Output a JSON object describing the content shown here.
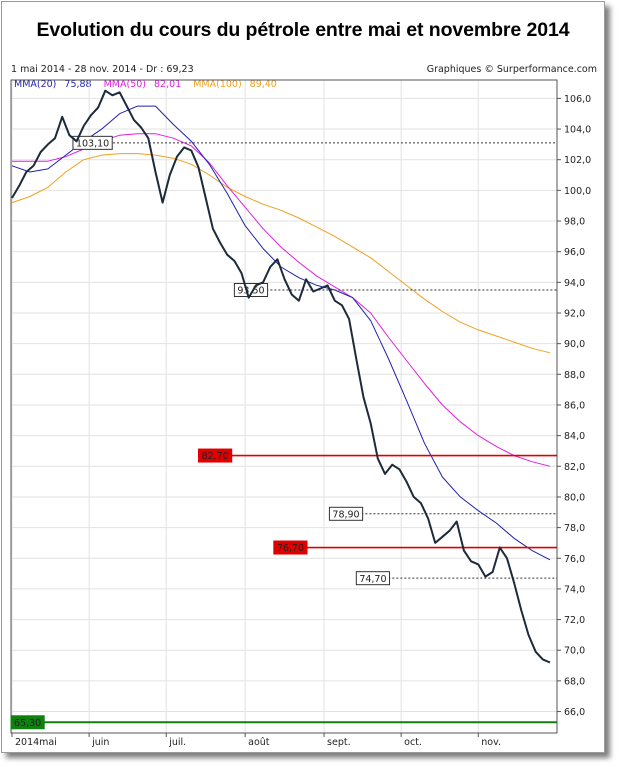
{
  "header": {
    "title": "Evolution du cours du pétrole entre mai et novembre 2014",
    "period": "1 mai 2014 - 28 nov. 2014 - Dr : 69,23",
    "credit": "Graphiques © Surperformance.com"
  },
  "legend": [
    {
      "label": "MMA(20)",
      "value": "75,88",
      "color": "#1f1fb0"
    },
    {
      "label": "MMA(50)",
      "value": "82,01",
      "color": "#e020e0"
    },
    {
      "label": "MMA(100)",
      "value": "89,40",
      "color": "#f0a020"
    }
  ],
  "colors": {
    "price": "#1c2a3a",
    "mma20": "#2020b0",
    "mma50": "#e020e0",
    "mma100": "#f0a020",
    "resistance": "#e00000",
    "support": "#108010"
  },
  "chart_data": {
    "type": "line",
    "title": "Evolution du cours du pétrole entre mai et novembre 2014",
    "xlabel": "",
    "ylabel": "",
    "x_range": [
      0,
      30
    ],
    "ylim": [
      64.6,
      107.2
    ],
    "y_ticks": [
      "66,0",
      "68,0",
      "70,0",
      "72,0",
      "74,0",
      "76,0",
      "78,0",
      "80,0",
      "82,0",
      "84,0",
      "86,0",
      "88,0",
      "90,0",
      "92,0",
      "94,0",
      "96,0",
      "98,0",
      "100,0",
      "102,0",
      "104,0",
      "106,0"
    ],
    "y_tick_values": [
      66,
      68,
      70,
      72,
      74,
      76,
      78,
      80,
      82,
      84,
      86,
      88,
      90,
      92,
      94,
      96,
      98,
      100,
      102,
      104,
      106
    ],
    "x_ticks": [
      {
        "label": "2014mai",
        "x": 0
      },
      {
        "label": "juin",
        "x": 4.3
      },
      {
        "label": "juil.",
        "x": 8.6
      },
      {
        "label": "août",
        "x": 13.0
      },
      {
        "label": "sept.",
        "x": 17.4
      },
      {
        "label": "oct.",
        "x": 21.7
      },
      {
        "label": "nov.",
        "x": 26.0
      }
    ],
    "series": [
      {
        "name": "Cours",
        "x": [
          0,
          0.4,
          0.8,
          1.2,
          1.6,
          2.0,
          2.4,
          2.8,
          3.2,
          3.6,
          4.0,
          4.4,
          4.8,
          5.2,
          5.6,
          6.0,
          6.4,
          6.8,
          7.2,
          7.6,
          8.0,
          8.4,
          8.8,
          9.2,
          9.6,
          10.0,
          10.4,
          10.8,
          11.2,
          11.6,
          12.0,
          12.4,
          12.8,
          13.2,
          13.6,
          14.0,
          14.4,
          14.8,
          15.2,
          15.6,
          16.0,
          16.4,
          16.8,
          17.2,
          17.6,
          18.0,
          18.4,
          18.8,
          19.2,
          19.6,
          20.0,
          20.4,
          20.8,
          21.2,
          21.6,
          22.0,
          22.4,
          22.8,
          23.2,
          23.6,
          24.0,
          24.4,
          24.8,
          25.2,
          25.6,
          26.0,
          26.4,
          26.8,
          27.2,
          27.6,
          28.0,
          28.4,
          28.8,
          29.2,
          29.6,
          30.0
        ],
        "values": [
          99.5,
          100.3,
          101.2,
          101.6,
          102.5,
          103.0,
          103.4,
          104.8,
          103.6,
          103.2,
          104.2,
          104.9,
          105.4,
          106.5,
          106.2,
          106.4,
          105.5,
          104.6,
          104.1,
          103.4,
          101.2,
          99.2,
          101.0,
          102.2,
          102.8,
          102.6,
          101.5,
          99.5,
          97.5,
          96.6,
          95.8,
          95.4,
          94.6,
          93.0,
          93.8,
          94.0,
          95.0,
          95.5,
          94.2,
          93.2,
          92.8,
          94.2,
          93.4,
          93.6,
          93.8,
          92.8,
          92.5,
          91.6,
          89.0,
          86.5,
          84.8,
          82.5,
          81.5,
          82.1,
          81.8,
          81.0,
          80.0,
          79.6,
          78.6,
          77.0,
          77.4,
          77.8,
          78.4,
          76.5,
          75.8,
          75.6,
          74.8,
          75.1,
          76.7,
          76.0,
          74.4,
          72.6,
          71.0,
          69.9,
          69.4,
          69.2
        ]
      },
      {
        "name": "MMA(20)",
        "x": [
          0,
          1,
          2,
          3,
          4,
          5,
          6,
          7,
          8,
          9,
          10,
          11,
          12,
          13,
          14,
          15,
          16,
          17,
          18,
          19,
          20,
          21,
          22,
          23,
          24,
          25,
          26,
          27,
          28,
          29,
          30
        ],
        "values": [
          101.6,
          101.2,
          101.4,
          102.3,
          103.2,
          104.0,
          105.0,
          105.5,
          105.5,
          104.3,
          103.2,
          101.7,
          99.8,
          97.7,
          96.2,
          95.0,
          94.3,
          93.8,
          93.5,
          93.0,
          91.5,
          89.0,
          86.3,
          83.5,
          81.3,
          80.0,
          79.1,
          78.3,
          77.3,
          76.5,
          75.9
        ]
      },
      {
        "name": "MMA(50)",
        "x": [
          0,
          1,
          2,
          3,
          4,
          5,
          6,
          7,
          8,
          9,
          10,
          11,
          12,
          13,
          14,
          15,
          16,
          17,
          18,
          19,
          20,
          21,
          22,
          23,
          24,
          25,
          26,
          27,
          28,
          29,
          30
        ],
        "values": [
          101.9,
          101.9,
          101.9,
          102.2,
          102.7,
          103.2,
          103.6,
          103.7,
          103.7,
          103.4,
          102.9,
          101.8,
          100.3,
          98.9,
          97.5,
          96.3,
          95.3,
          94.4,
          93.7,
          93.0,
          92.0,
          90.4,
          88.9,
          87.4,
          86.0,
          84.9,
          84.0,
          83.3,
          82.7,
          82.3,
          82.0
        ]
      },
      {
        "name": "MMA(100)",
        "x": [
          0,
          1,
          2,
          3,
          4,
          5,
          6,
          7,
          8,
          9,
          10,
          11,
          12,
          13,
          14,
          15,
          16,
          17,
          18,
          19,
          20,
          21,
          22,
          23,
          24,
          25,
          26,
          27,
          28,
          29,
          30
        ],
        "values": [
          99.2,
          99.6,
          100.2,
          101.2,
          102.0,
          102.3,
          102.4,
          102.4,
          102.3,
          102.1,
          101.7,
          101.0,
          100.2,
          99.6,
          99.1,
          98.7,
          98.2,
          97.6,
          97.0,
          96.3,
          95.6,
          94.7,
          93.8,
          92.9,
          92.1,
          91.4,
          90.9,
          90.5,
          90.1,
          89.7,
          89.4
        ]
      }
    ],
    "levels": [
      {
        "label": "103,10",
        "value": 103.1,
        "style": "dotted",
        "color": "#333333",
        "label_x": 3.4,
        "line_from": 3.4
      },
      {
        "label": "93,50",
        "value": 93.5,
        "style": "dotted",
        "color": "#333333",
        "label_x": 12.4,
        "line_from": 12.4
      },
      {
        "label": "82,70",
        "value": 82.7,
        "style": "solid",
        "color": "#e00000",
        "label_x": 10.4,
        "line_from": 10.4,
        "filled": true
      },
      {
        "label": "78,90",
        "value": 78.9,
        "style": "dotted",
        "color": "#333333",
        "label_x": 17.7,
        "line_from": 17.7
      },
      {
        "label": "76,70",
        "value": 76.7,
        "style": "solid",
        "color": "#e00000",
        "label_x": 14.6,
        "line_from": 14.6,
        "filled": true
      },
      {
        "label": "74,70",
        "value": 74.7,
        "style": "dotted",
        "color": "#333333",
        "label_x": 19.2,
        "line_from": 19.2
      },
      {
        "label": "65,30",
        "value": 65.3,
        "style": "solid",
        "color": "#108010",
        "label_x": -0.2,
        "line_from": -0.2,
        "filled": true
      }
    ],
    "grid": true
  }
}
